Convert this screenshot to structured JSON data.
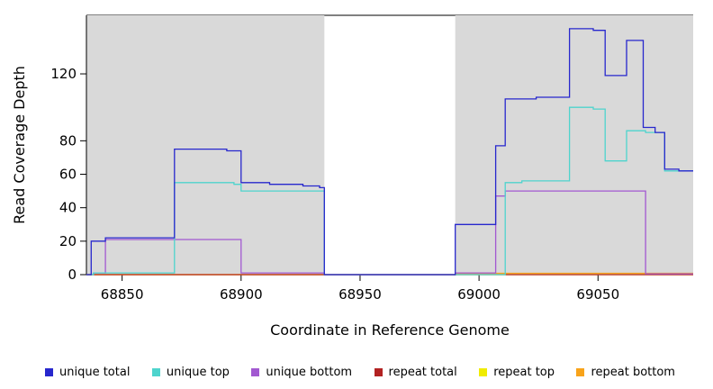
{
  "figure": {
    "background_color": "#ffffff",
    "axis_color": "#000000",
    "shaded_band_color": "#d9d9d9"
  },
  "chart_data": {
    "type": "line",
    "subtype": "step",
    "title": "",
    "xlabel": "Coordinate in Reference Genome",
    "ylabel": "Read Coverage Depth",
    "xlim": [
      68835,
      69090
    ],
    "ylim": [
      0,
      155
    ],
    "x_ticks": [
      68850,
      68900,
      68950,
      69000,
      69050
    ],
    "y_ticks": [
      0,
      20,
      40,
      60,
      80,
      120
    ],
    "grid": false,
    "legend_position": "bottom",
    "shaded_regions": [
      {
        "from": 68835,
        "to": 68935,
        "color": "#d9d9d9"
      },
      {
        "from": 68990,
        "to": 69090,
        "color": "#d9d9d9"
      }
    ],
    "series": [
      {
        "name": "unique total",
        "color": "#2727cd",
        "steps": [
          [
            68835,
            0
          ],
          [
            68837,
            20
          ],
          [
            68843,
            22
          ],
          [
            68872,
            75
          ],
          [
            68894,
            74
          ],
          [
            68900,
            55
          ],
          [
            68912,
            54
          ],
          [
            68926,
            53
          ],
          [
            68933,
            52
          ],
          [
            68935,
            0
          ],
          [
            68990,
            30
          ],
          [
            69007,
            77
          ],
          [
            69011,
            105
          ],
          [
            69024,
            106
          ],
          [
            69038,
            147
          ],
          [
            69048,
            146
          ],
          [
            69053,
            119
          ],
          [
            69062,
            140
          ],
          [
            69069,
            88
          ],
          [
            69074,
            85
          ],
          [
            69078,
            63
          ],
          [
            69084,
            62
          ]
        ]
      },
      {
        "name": "unique top",
        "color": "#4ed4cd",
        "steps": [
          [
            68835,
            0
          ],
          [
            68838,
            1
          ],
          [
            68872,
            55
          ],
          [
            68897,
            54
          ],
          [
            68900,
            50
          ],
          [
            68935,
            0
          ],
          [
            69011,
            55
          ],
          [
            69018,
            56
          ],
          [
            69038,
            100
          ],
          [
            69048,
            99
          ],
          [
            69053,
            68
          ],
          [
            69062,
            86
          ],
          [
            69070,
            85
          ],
          [
            69078,
            62
          ]
        ]
      },
      {
        "name": "unique bottom",
        "color": "#a259d1",
        "steps": [
          [
            68835,
            0
          ],
          [
            68838,
            1
          ],
          [
            68843,
            21
          ],
          [
            68900,
            1
          ],
          [
            68935,
            0
          ],
          [
            68990,
            1
          ],
          [
            69007,
            47
          ],
          [
            69011,
            50
          ],
          [
            69070,
            0.5
          ]
        ]
      },
      {
        "name": "repeat total",
        "color": "#b22222",
        "steps": [
          [
            68835,
            0
          ]
        ]
      },
      {
        "name": "repeat top",
        "color": "#f0ec00",
        "steps": [
          [
            68835,
            0
          ]
        ]
      },
      {
        "name": "repeat bottom",
        "color": "#f8a31a",
        "steps": [
          [
            68835,
            0
          ],
          [
            68990,
            0.8
          ]
        ]
      }
    ]
  }
}
